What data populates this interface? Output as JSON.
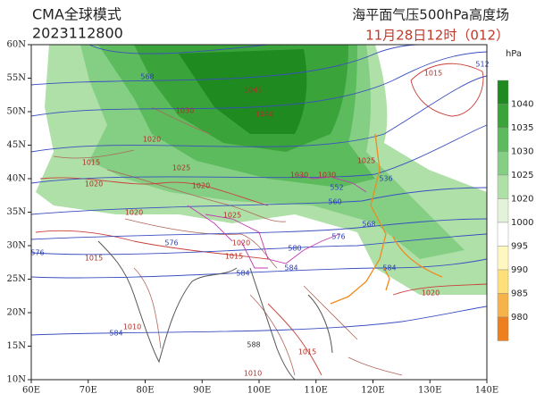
{
  "header": {
    "model": "CMA全球模式",
    "init_time": "2023112800",
    "product": "海平面气压500hPa高度场",
    "valid_time": "11月28日12时（012）"
  },
  "axes": {
    "lon_labels": [
      "60E",
      "70E",
      "80E",
      "90E",
      "100E",
      "110E",
      "120E",
      "130E",
      "140E"
    ],
    "lat_labels": [
      "60N",
      "55N",
      "50N",
      "45N",
      "40N",
      "35N",
      "30N",
      "25N",
      "20N",
      "15N",
      "10N"
    ]
  },
  "colorbar": {
    "unit": "hPa",
    "ticks": [
      1040,
      1035,
      1030,
      1025,
      1020,
      1000,
      995,
      990,
      985,
      980
    ],
    "colors": [
      "#1f8a1f",
      "#3aa33a",
      "#5cbb5c",
      "#84cf84",
      "#aee0a8",
      "#e2f3da",
      "#ffffff",
      "#fff7c0",
      "#fde07a",
      "#f7b24a",
      "#ee7f1f"
    ]
  },
  "contour_labels": [
    "568",
    "1045",
    "1040",
    "1030",
    "1020",
    "1015",
    "1025",
    "1020",
    "1020",
    "1020",
    "1025",
    "1030",
    "1030",
    "1025",
    "1015",
    "512",
    "552",
    "560",
    "568",
    "576",
    "576",
    "576",
    "580",
    "584",
    "584",
    "584",
    "584",
    "588",
    "1020",
    "1015",
    "1010",
    "1010",
    "1015",
    "1020",
    "1015",
    "536"
  ]
}
